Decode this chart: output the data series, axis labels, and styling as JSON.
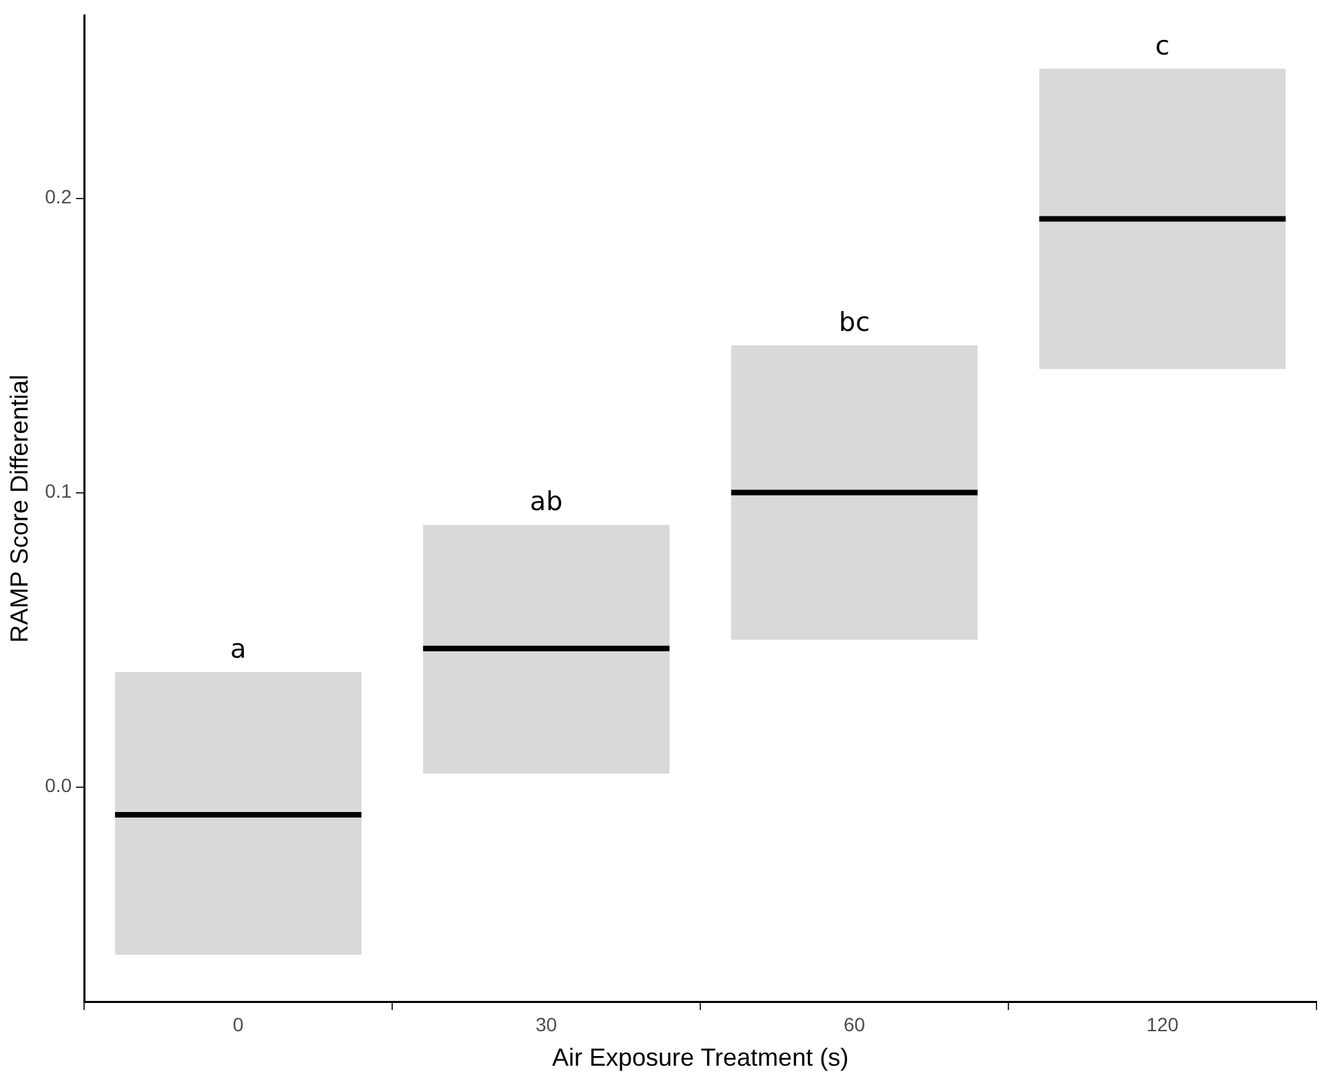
{
  "chart_data": {
    "type": "box",
    "xlabel": "Air Exposure Treatment (s)",
    "ylabel": "RAMP Score Differential",
    "categories": [
      "0",
      "30",
      "60",
      "120"
    ],
    "color": "#d9d9d9",
    "boxes": [
      {
        "low": -0.057,
        "q1": -0.057,
        "median": -0.0095,
        "q3": 0.039,
        "high": 0.039
      },
      {
        "low": 0.0045,
        "q1": 0.0045,
        "median": 0.047,
        "q3": 0.089,
        "high": 0.089
      },
      {
        "low": 0.05,
        "q1": 0.05,
        "median": 0.1,
        "q3": 0.15,
        "high": 0.15
      },
      {
        "low": 0.142,
        "q1": 0.142,
        "median": 0.193,
        "q3": 0.244,
        "high": 0.244
      }
    ],
    "ylim": [
      -0.073,
      0.262
    ],
    "yticks": [
      {
        "value": 0,
        "label": "0.0"
      },
      {
        "value": 0.1,
        "label": "0.1"
      },
      {
        "value": 0.2,
        "label": "0.2"
      }
    ],
    "grid": false,
    "legend": false,
    "annotations": [
      {
        "text": "a",
        "x": "0",
        "y": 0.039
      },
      {
        "text": "ab",
        "x": "30",
        "y": 0.089
      },
      {
        "text": "bc",
        "x": "60",
        "y": 0.15
      },
      {
        "text": "c",
        "x": "120",
        "y": 0.244
      }
    ]
  }
}
